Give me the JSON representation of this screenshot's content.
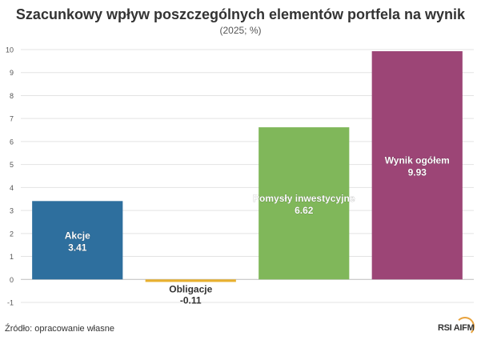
{
  "title": "Szacunkowy wpływ poszczególnych elementów portfela na wynik",
  "subtitle": "(2025; %)",
  "source": "Źródło: opracowanie własne",
  "logo": "RSI AIFM",
  "chart_data": {
    "type": "bar",
    "categories": [
      "Akcje",
      "Obligacje",
      "Pomysły inwestycyjne",
      "Wynik ogółem"
    ],
    "values": [
      3.41,
      -0.11,
      6.62,
      9.93
    ],
    "value_labels": [
      "3.41",
      "-0.11",
      "6.62",
      "9.93"
    ],
    "colors": [
      "#2e6f9e",
      "#e8b130",
      "#80b75a",
      "#9c4576"
    ],
    "ylim": [
      -1,
      10
    ],
    "yticks": [
      -1,
      0,
      1,
      2,
      3,
      4,
      5,
      6,
      7,
      8,
      9,
      10
    ],
    "grid": true,
    "legend": "none",
    "labels_inside_bar": true
  }
}
